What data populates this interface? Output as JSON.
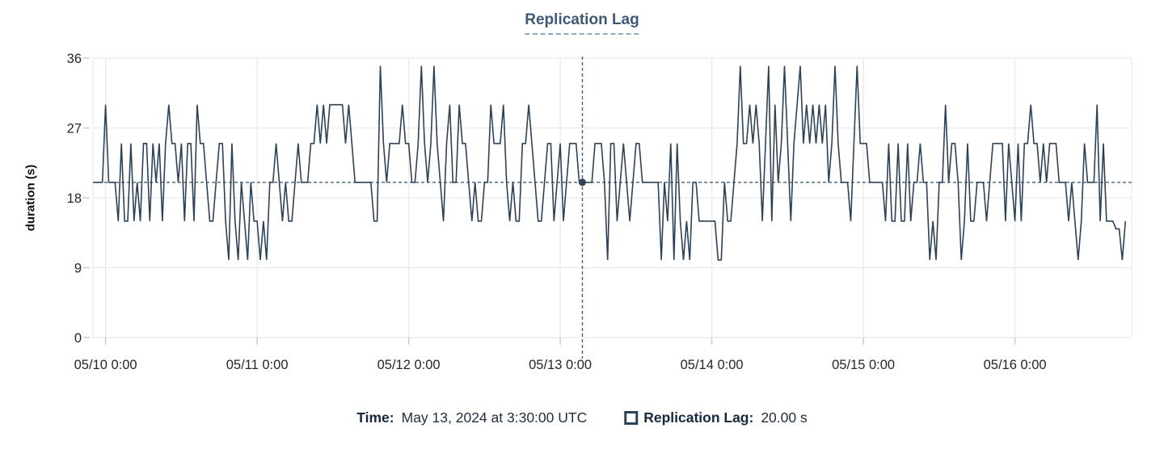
{
  "title": "Replication Lag",
  "y_axis_label": "duration (s)",
  "legend": {
    "time_label": "Time:",
    "time_value": "May 13, 2024 at 3:30:00 UTC",
    "series_label": "Replication Lag:",
    "series_value": "20.00 s",
    "swatch_icon": "hollow-square"
  },
  "colors": {
    "line": "#2c4257",
    "crosshair": "#456179",
    "crosshair_dot": "#2c4257",
    "title": "#3c5a78",
    "title_underline": "#93a9bd",
    "grid": "#e8e9ea",
    "tick_mark": "#c9ccd0",
    "tick_text": "#23272c",
    "legend_label": "#16293f",
    "legend_text": "#1f2c3c"
  },
  "chart_data": {
    "type": "line",
    "title": "Replication Lag",
    "xlabel": "",
    "ylabel": "duration (s)",
    "ylim": [
      0,
      36
    ],
    "y_ticks": [
      0,
      9,
      18,
      27,
      36
    ],
    "x_tick_labels": [
      "05/10 0:00",
      "05/11 0:00",
      "05/12 0:00",
      "05/13 0:00",
      "05/14 0:00",
      "05/15 0:00",
      "05/16 0:00"
    ],
    "grid": true,
    "legend_position": "bottom",
    "series_name": "Replication Lag",
    "x_start": "2024-05-09 22:00 UTC",
    "x_interval_minutes": 30,
    "crosshair": {
      "time_label": "May 13, 2024 at 3:30:00 UTC",
      "hours_from_series_start": 77.5,
      "value": 20.0
    },
    "values": [
      20,
      20,
      20,
      20,
      30,
      20,
      20,
      20,
      15,
      25,
      15,
      15,
      25,
      15,
      20,
      15,
      25,
      25,
      15,
      25,
      20,
      25,
      15,
      25,
      30,
      25,
      25,
      20,
      25,
      15,
      25,
      25,
      15,
      30,
      25,
      25,
      20,
      15,
      15,
      20,
      25,
      25,
      15,
      10,
      25,
      15,
      10,
      20,
      15,
      10,
      20,
      15,
      15,
      10,
      15,
      10,
      20,
      20,
      25,
      20,
      15,
      20,
      15,
      15,
      20,
      25,
      20,
      20,
      20,
      25,
      25,
      30,
      25,
      30,
      25,
      30,
      30,
      30,
      30,
      30,
      25,
      30,
      25,
      20,
      20,
      20,
      20,
      20,
      20,
      15,
      15,
      35,
      25,
      20,
      25,
      25,
      25,
      25,
      30,
      25,
      25,
      20,
      20,
      25,
      35,
      25,
      20,
      25,
      35,
      25,
      20,
      15,
      25,
      30,
      20,
      20,
      30,
      25,
      25,
      20,
      15,
      20,
      15,
      15,
      20,
      20,
      30,
      25,
      25,
      25,
      30,
      20,
      15,
      20,
      15,
      15,
      25,
      25,
      30,
      25,
      20,
      15,
      15,
      20,
      25,
      25,
      15,
      20,
      25,
      15,
      20,
      25,
      25,
      25,
      20,
      20,
      20,
      20,
      20,
      25,
      25,
      25,
      20,
      10,
      25,
      25,
      15,
      20,
      25,
      20,
      15,
      20,
      25,
      25,
      20,
      20,
      20,
      20,
      20,
      20,
      10,
      20,
      15,
      25,
      10,
      25,
      15,
      10,
      15,
      10,
      20,
      20,
      15,
      15,
      15,
      15,
      15,
      15,
      10,
      10,
      20,
      15,
      15,
      20,
      25,
      35,
      25,
      25,
      30,
      25,
      30,
      25,
      15,
      25,
      35,
      15,
      30,
      20,
      25,
      35,
      25,
      15,
      25,
      30,
      35,
      25,
      30,
      25,
      30,
      25,
      30,
      25,
      30,
      20,
      25,
      35,
      25,
      20,
      20,
      20,
      15,
      25,
      35,
      25,
      25,
      25,
      20,
      20,
      20,
      20,
      20,
      15,
      25,
      15,
      15,
      25,
      15,
      15,
      25,
      15,
      20,
      20,
      25,
      20,
      20,
      10,
      15,
      10,
      20,
      20,
      30,
      20,
      25,
      25,
      20,
      10,
      15,
      25,
      15,
      15,
      20,
      20,
      20,
      15,
      20,
      25,
      25,
      25,
      25,
      15,
      25,
      20,
      15,
      25,
      15,
      25,
      25,
      30,
      25,
      25,
      20,
      25,
      20,
      25,
      25,
      25,
      20,
      20,
      20,
      15,
      20,
      15,
      10,
      15,
      25,
      20,
      20,
      20,
      30,
      15,
      25,
      15,
      15,
      15,
      14,
      14,
      10,
      15
    ]
  }
}
